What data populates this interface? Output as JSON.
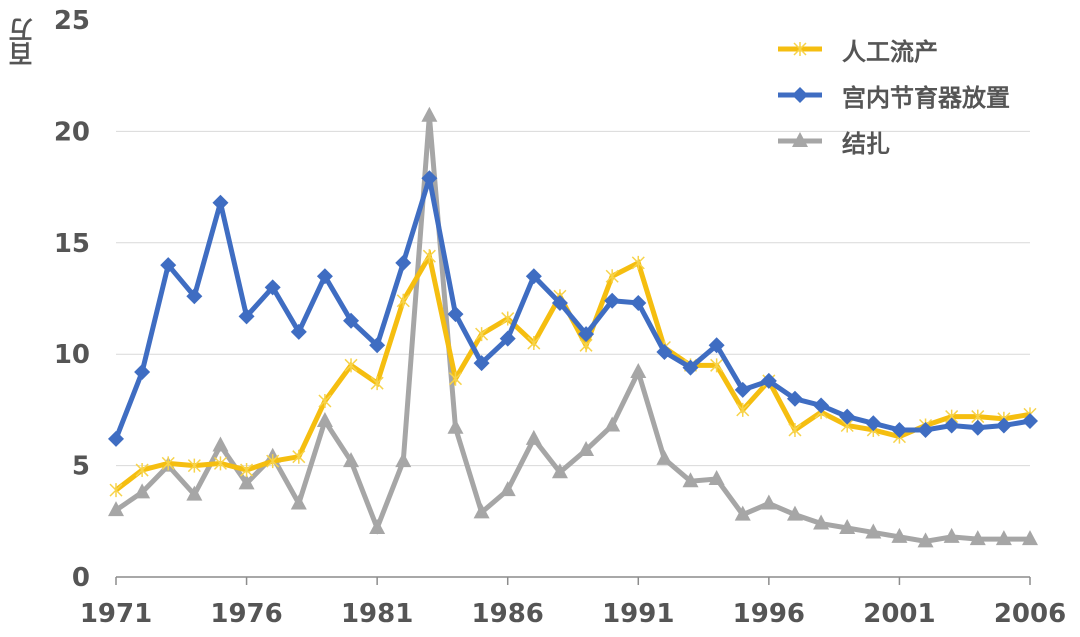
{
  "chart_data": {
    "type": "line",
    "title": "",
    "xlabel": "",
    "ylabel": "百万",
    "ylim": [
      0,
      25
    ],
    "yticks": [
      "0",
      "5",
      "10",
      "15",
      "20",
      "25"
    ],
    "ytick_values": [
      0,
      5,
      10,
      15,
      20,
      25
    ],
    "xticks": [
      "1971",
      "1976",
      "1981",
      "1986",
      "1991",
      "1996",
      "2001",
      "2006"
    ],
    "xtick_values": [
      1971,
      1976,
      1981,
      1986,
      1991,
      1996,
      2001,
      2006
    ],
    "xlim": [
      1971,
      2006
    ],
    "grid": true,
    "legend_position": "top-right",
    "x": [
      1971,
      1972,
      1973,
      1974,
      1975,
      1976,
      1977,
      1978,
      1979,
      1980,
      1981,
      1982,
      1983,
      1984,
      1985,
      1986,
      1987,
      1988,
      1989,
      1990,
      1991,
      1992,
      1993,
      1994,
      1995,
      1996,
      1997,
      1998,
      1999,
      2000,
      2001,
      2002,
      2003,
      2004,
      2005,
      2006
    ],
    "series": [
      {
        "name": "人工流产",
        "color": "#F5BE10",
        "marker": "star",
        "values": [
          3.9,
          4.8,
          5.1,
          5.0,
          5.1,
          4.8,
          5.2,
          5.4,
          7.9,
          9.5,
          8.7,
          12.4,
          14.4,
          8.9,
          10.9,
          11.6,
          10.5,
          12.6,
          10.4,
          13.5,
          14.1,
          10.3,
          9.5,
          9.5,
          7.5,
          8.8,
          6.6,
          7.4,
          6.8,
          6.6,
          6.3,
          6.8,
          7.2,
          7.2,
          7.1,
          7.3
        ]
      },
      {
        "name": "宫内节育器放置",
        "color": "#3F6DC2",
        "marker": "diamond",
        "values": [
          6.2,
          9.2,
          14.0,
          12.6,
          16.8,
          11.7,
          13.0,
          11.0,
          13.5,
          11.5,
          10.4,
          14.1,
          17.9,
          11.8,
          9.6,
          10.7,
          13.5,
          12.3,
          10.9,
          12.4,
          12.3,
          10.1,
          9.4,
          10.4,
          8.4,
          8.8,
          8.0,
          7.7,
          7.2,
          6.9,
          6.6,
          6.6,
          6.8,
          6.7,
          6.8,
          7.0
        ]
      },
      {
        "name": "结扎",
        "color": "#A6A6A6",
        "marker": "triangle",
        "values": [
          3.0,
          3.8,
          5.0,
          3.7,
          5.9,
          4.2,
          5.4,
          3.3,
          7.0,
          5.2,
          2.2,
          5.2,
          20.7,
          6.7,
          2.9,
          3.9,
          6.2,
          4.7,
          5.7,
          6.8,
          9.2,
          5.3,
          4.3,
          4.4,
          2.8,
          3.3,
          2.8,
          2.4,
          2.2,
          2.0,
          1.8,
          1.6,
          1.8,
          1.7,
          1.7,
          1.7
        ]
      }
    ],
    "colors": {
      "axis": "#8C8C8C",
      "grid": "#D9D9D9",
      "text": "#555555"
    }
  }
}
